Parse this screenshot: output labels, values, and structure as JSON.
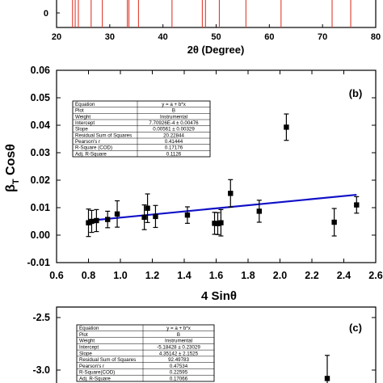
{
  "chart_data": [
    {
      "panel": "a",
      "type": "bar",
      "xlabel": "2θ (Degree)",
      "xlim": [
        20,
        80
      ],
      "xticks": [
        "20",
        "30",
        "40",
        "50",
        "60",
        "70",
        "80"
      ],
      "ytick_visible": "0",
      "series": [
        {
          "color": "#e03b2e",
          "x": [
            23.0,
            23.5,
            24.1,
            26.5,
            28.6,
            33.3,
            33.6,
            35.4,
            41.7,
            47.4,
            48.0,
            50.6,
            55.6,
            62.2,
            71.8,
            75.3
          ],
          "values": [
            1,
            1,
            1,
            1,
            1,
            1,
            1,
            1,
            1,
            1,
            1,
            1,
            1,
            1,
            1,
            1
          ]
        }
      ]
    },
    {
      "panel": "b",
      "panel_label": "(b)",
      "type": "scatter",
      "ylabel": "βT Cosθ",
      "xlabel": "4 Sinθ",
      "xlim": [
        0.6,
        2.6
      ],
      "ylim": [
        -0.01,
        0.06
      ],
      "xticks": [
        "0.6",
        "0.8",
        "1.0",
        "1.2",
        "1.4",
        "1.6",
        "1.8",
        "2.0",
        "2.2",
        "2.4",
        "2.6"
      ],
      "yticks": [
        "-0.01",
        "0.00",
        "0.01",
        "0.02",
        "0.03",
        "0.04",
        "0.05",
        "0.06"
      ],
      "points": {
        "x": [
          0.8,
          0.82,
          0.85,
          0.92,
          0.98,
          1.15,
          1.17,
          1.22,
          1.42,
          1.59,
          1.61,
          1.63,
          1.69,
          1.87,
          2.04,
          2.34,
          2.48
        ],
        "y": [
          0.0045,
          0.005,
          0.0053,
          0.0057,
          0.0077,
          0.0065,
          0.0098,
          0.0068,
          0.0073,
          0.0043,
          0.0042,
          0.0045,
          0.0152,
          0.0087,
          0.0393,
          0.0047,
          0.011
        ],
        "err": [
          0.005,
          0.004,
          0.004,
          0.003,
          0.0048,
          0.0045,
          0.0052,
          0.004,
          0.003,
          0.004,
          0.004,
          0.0048,
          0.005,
          0.004,
          0.0048,
          0.005,
          0.003
        ],
        "color": "#000000"
      },
      "fit_line": {
        "intercept": 0.00077,
        "slope": 0.00561,
        "color": "#1010c8"
      },
      "fit_table": {
        "rows": [
          [
            "Equation",
            "y = a + b*x"
          ],
          [
            "Plot",
            "B"
          ],
          [
            "Weight",
            "Instrumental"
          ],
          [
            "Intercept",
            "7.70926E-4 ± 0.00476"
          ],
          [
            "Slope",
            "0.00561 ± 0.00329"
          ],
          [
            "Residual Sum of Squares",
            "20.22844"
          ],
          [
            "Pearson's r",
            "0.41444"
          ],
          [
            "R-Square (COD)",
            "0.17176"
          ],
          [
            "Adj. R-Square",
            "0.1126"
          ]
        ]
      }
    },
    {
      "panel": "c",
      "panel_label": "(c)",
      "type": "scatter",
      "ylim": [
        -3.4,
        -2.4
      ],
      "yticks": [
        "-2.5",
        "-3.0"
      ],
      "points": {
        "x": [
          1
        ],
        "y": [
          -3.08
        ],
        "err": [
          0.22
        ],
        "color": "#000000"
      },
      "fit_table": {
        "rows": [
          [
            "Equation",
            "y = a + b*x"
          ],
          [
            "Plot",
            "B"
          ],
          [
            "Weight",
            "Instrumental"
          ],
          [
            "Intercept",
            "-5.18428 ± 0.23029"
          ],
          [
            "Slope",
            "4.35142 ± 2.1525"
          ],
          [
            "Residual Sum of Squares",
            "92.49783"
          ],
          [
            "Pearson's r",
            "0.47534"
          ],
          [
            "R-Square(COD)",
            "0.22595"
          ],
          [
            "Adj. R-Square",
            "0.17066"
          ]
        ]
      }
    }
  ]
}
